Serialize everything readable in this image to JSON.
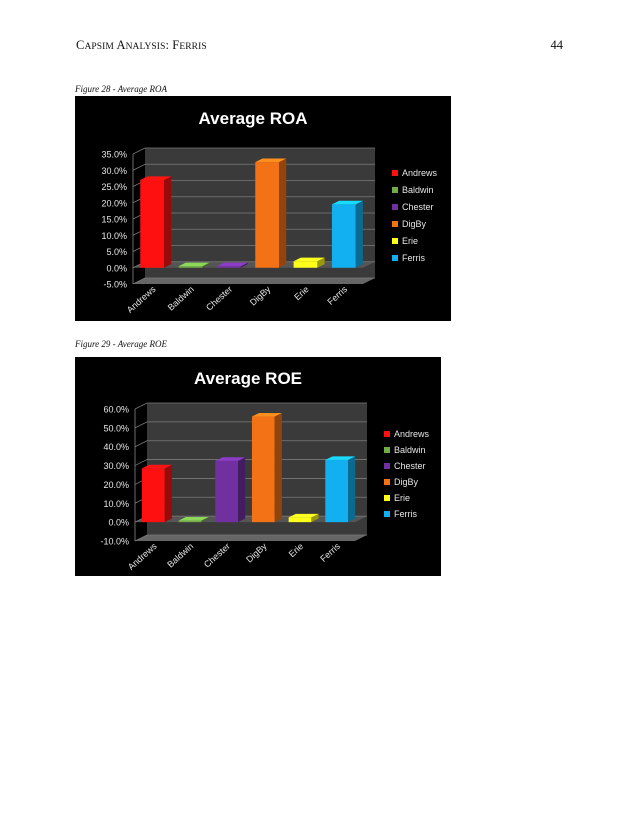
{
  "header": {
    "running_head_caps": "C",
    "running_head_sc1": "APSIM ",
    "running_head_caps2": "A",
    "running_head_sc2": "NALYSIS",
    "running_head_colon": ": ",
    "running_head_caps3": "F",
    "running_head_sc3": "ERRIS",
    "page_number": "44"
  },
  "figures": [
    {
      "caption": "Figure 28 - Average ROA"
    },
    {
      "caption": "Figure 29 - Average ROE"
    }
  ],
  "chart_data": [
    {
      "type": "bar",
      "title": "Average ROA",
      "categories": [
        "Andrews",
        "Baldwin",
        "Chester",
        "DigBy",
        "Erie",
        "Ferris"
      ],
      "values": [
        27.0,
        0.0,
        0.0,
        32.5,
        2.0,
        19.5
      ],
      "colors": [
        "#ff1010",
        "#70ad47",
        "#7030a0",
        "#f47216",
        "#ffff1a",
        "#12b0f0"
      ],
      "ylim": [
        -5,
        35
      ],
      "yticks": [
        "-5.0%",
        "0.0%",
        "5.0%",
        "10.0%",
        "15.0%",
        "20.0%",
        "25.0%",
        "30.0%",
        "35.0%"
      ],
      "ytick_values": [
        -5,
        0,
        5,
        10,
        15,
        20,
        25,
        30,
        35
      ],
      "legend": "right",
      "grid": true
    },
    {
      "type": "bar",
      "title": "Average ROE",
      "categories": [
        "Andrews",
        "Baldwin",
        "Chester",
        "DigBy",
        "Erie",
        "Ferris"
      ],
      "values": [
        28.5,
        0.0,
        32.5,
        56.0,
        2.5,
        33.0
      ],
      "colors": [
        "#ff1010",
        "#70ad47",
        "#7030a0",
        "#f47216",
        "#ffff1a",
        "#12b0f0"
      ],
      "ylim": [
        -10,
        60
      ],
      "yticks": [
        "-10.0%",
        "0.0%",
        "10.0%",
        "20.0%",
        "30.0%",
        "40.0%",
        "50.0%",
        "60.0%"
      ],
      "ytick_values": [
        -10,
        0,
        10,
        20,
        30,
        40,
        50,
        60
      ],
      "legend": "right",
      "grid": true
    }
  ]
}
